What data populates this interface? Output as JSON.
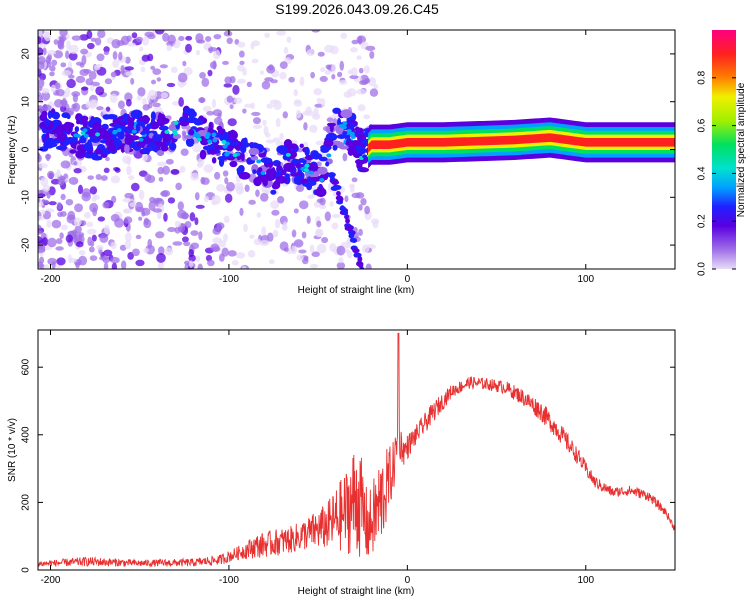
{
  "title": "S199.2026.043.09.26.C45",
  "chart_data": [
    {
      "type": "heatmap",
      "xlabel": "Height of straight line (km)",
      "ylabel": "Frequency (Hz)",
      "xlim": [
        -207,
        150
      ],
      "ylim": [
        -25,
        25
      ],
      "xticks": [
        -200,
        -100,
        0,
        100
      ],
      "yticks": [
        -20,
        -10,
        0,
        10,
        20
      ],
      "colorbar": {
        "label": "Normalized spectral amplitude",
        "range": [
          0.0,
          1.0
        ],
        "ticks": [
          "0.0",
          "0.2",
          "0.4",
          "0.6",
          "0.8"
        ],
        "tick_values": [
          0.0,
          0.2,
          0.4,
          0.6,
          0.8
        ],
        "colors": [
          "#e8dcf8",
          "#a070e8",
          "#5a00e0",
          "#2020ff",
          "#00a0ff",
          "#00e0d0",
          "#00e060",
          "#a0f000",
          "#f0f000",
          "#ff8000",
          "#ff2020",
          "#ff0080"
        ]
      },
      "ridge": [
        {
          "x": -200,
          "f": 4
        },
        {
          "x": -185,
          "f": 3
        },
        {
          "x": -175,
          "f": 2
        },
        {
          "x": -160,
          "f": 4
        },
        {
          "x": -140,
          "f": 3
        },
        {
          "x": -125,
          "f": 5
        },
        {
          "x": -110,
          "f": 2
        },
        {
          "x": -95,
          "f": -1
        },
        {
          "x": -85,
          "f": -3
        },
        {
          "x": -75,
          "f": -5
        },
        {
          "x": -65,
          "f": -2
        },
        {
          "x": -55,
          "f": -4
        },
        {
          "x": -48,
          "f": -6
        },
        {
          "x": -40,
          "f": 5
        },
        {
          "x": -30,
          "f": 3
        },
        {
          "x": -25,
          "f": -1
        },
        {
          "x": -20,
          "f": 1
        },
        {
          "x": -10,
          "f": 1
        },
        {
          "x": 0,
          "f": 1.5
        },
        {
          "x": 20,
          "f": 1.5
        },
        {
          "x": 60,
          "f": 2
        },
        {
          "x": 80,
          "f": 2.5
        },
        {
          "x": 100,
          "f": 1.5
        },
        {
          "x": 150,
          "f": 1.5
        }
      ],
      "branch": [
        {
          "x": -45,
          "f": -3
        },
        {
          "x": -38,
          "f": -10
        },
        {
          "x": -32,
          "f": -17
        },
        {
          "x": -28,
          "f": -22
        },
        {
          "x": -25,
          "f": -25
        }
      ]
    },
    {
      "type": "line",
      "xlabel": "Height of straight line (km)",
      "ylabel": "SNR (10 * v/v)",
      "xlim": [
        -207,
        150
      ],
      "ylim": [
        0,
        710
      ],
      "xticks": [
        -200,
        -100,
        0,
        100
      ],
      "yticks": [
        0,
        200,
        400,
        600
      ],
      "series": [
        {
          "name": "SNR",
          "color": "#e83030",
          "x": [
            -207,
            -180,
            -150,
            -120,
            -105,
            -95,
            -85,
            -75,
            -65,
            -55,
            -45,
            -35,
            -28,
            -22,
            -15,
            -8,
            -5,
            -2,
            5,
            15,
            25,
            35,
            45,
            55,
            65,
            75,
            85,
            95,
            105,
            115,
            125,
            135,
            145,
            150
          ],
          "base": [
            18,
            25,
            20,
            22,
            30,
            50,
            70,
            80,
            90,
            110,
            130,
            170,
            220,
            120,
            200,
            300,
            390,
            350,
            400,
            470,
            530,
            555,
            550,
            540,
            510,
            470,
            410,
            340,
            260,
            230,
            235,
            220,
            170,
            120
          ],
          "noise": [
            8,
            14,
            10,
            12,
            15,
            20,
            35,
            40,
            40,
            50,
            70,
            120,
            180,
            100,
            140,
            80,
            60,
            40,
            30,
            30,
            20,
            18,
            18,
            20,
            25,
            30,
            30,
            25,
            18,
            15,
            15,
            15,
            12,
            10
          ]
        }
      ]
    }
  ]
}
